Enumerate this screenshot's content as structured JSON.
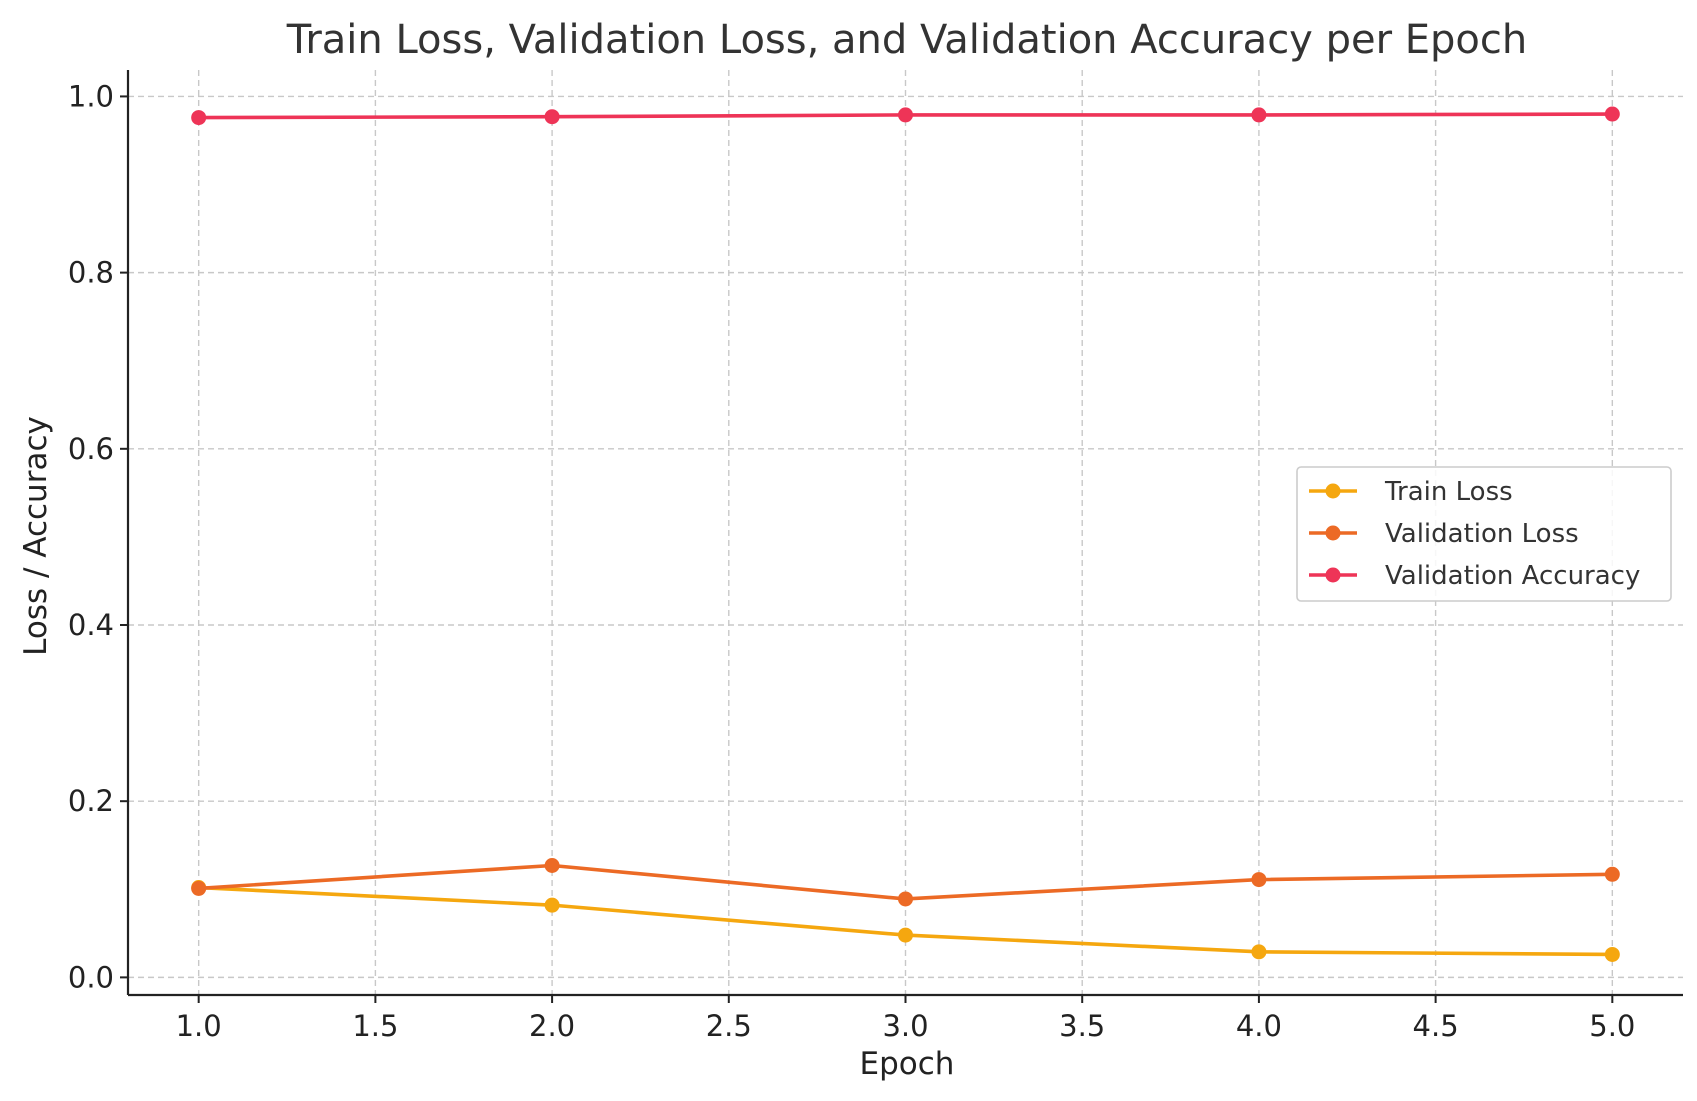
{
  "chart_data": {
    "type": "line",
    "title": "Train Loss, Validation Loss, and Validation Accuracy per Epoch",
    "xlabel": "Epoch",
    "ylabel": "Loss / Accuracy",
    "xlim": [
      0.8,
      5.2
    ],
    "ylim": [
      -0.02,
      1.03
    ],
    "xticks": [
      1.0,
      1.5,
      2.0,
      2.5,
      3.0,
      3.5,
      4.0,
      4.5,
      5.0
    ],
    "xtick_labels": [
      "1.0",
      "1.5",
      "2.0",
      "2.5",
      "3.0",
      "3.5",
      "4.0",
      "4.5",
      "5.0"
    ],
    "yticks": [
      0.0,
      0.2,
      0.4,
      0.6,
      0.8,
      1.0
    ],
    "ytick_labels": [
      "0.0",
      "0.2",
      "0.4",
      "0.6",
      "0.8",
      "1.0"
    ],
    "grid": true,
    "legend_position": "center-right",
    "x": [
      1,
      2,
      3,
      4,
      5
    ],
    "series": [
      {
        "name": "Train Loss",
        "color": "#F5A70F",
        "values": [
          0.102,
          0.082,
          0.048,
          0.029,
          0.026
        ]
      },
      {
        "name": "Validation Loss",
        "color": "#EC6A25",
        "values": [
          0.101,
          0.127,
          0.089,
          0.111,
          0.117
        ]
      },
      {
        "name": "Validation Accuracy",
        "color": "#EE3457",
        "values": [
          0.976,
          0.977,
          0.979,
          0.979,
          0.98
        ]
      }
    ]
  }
}
